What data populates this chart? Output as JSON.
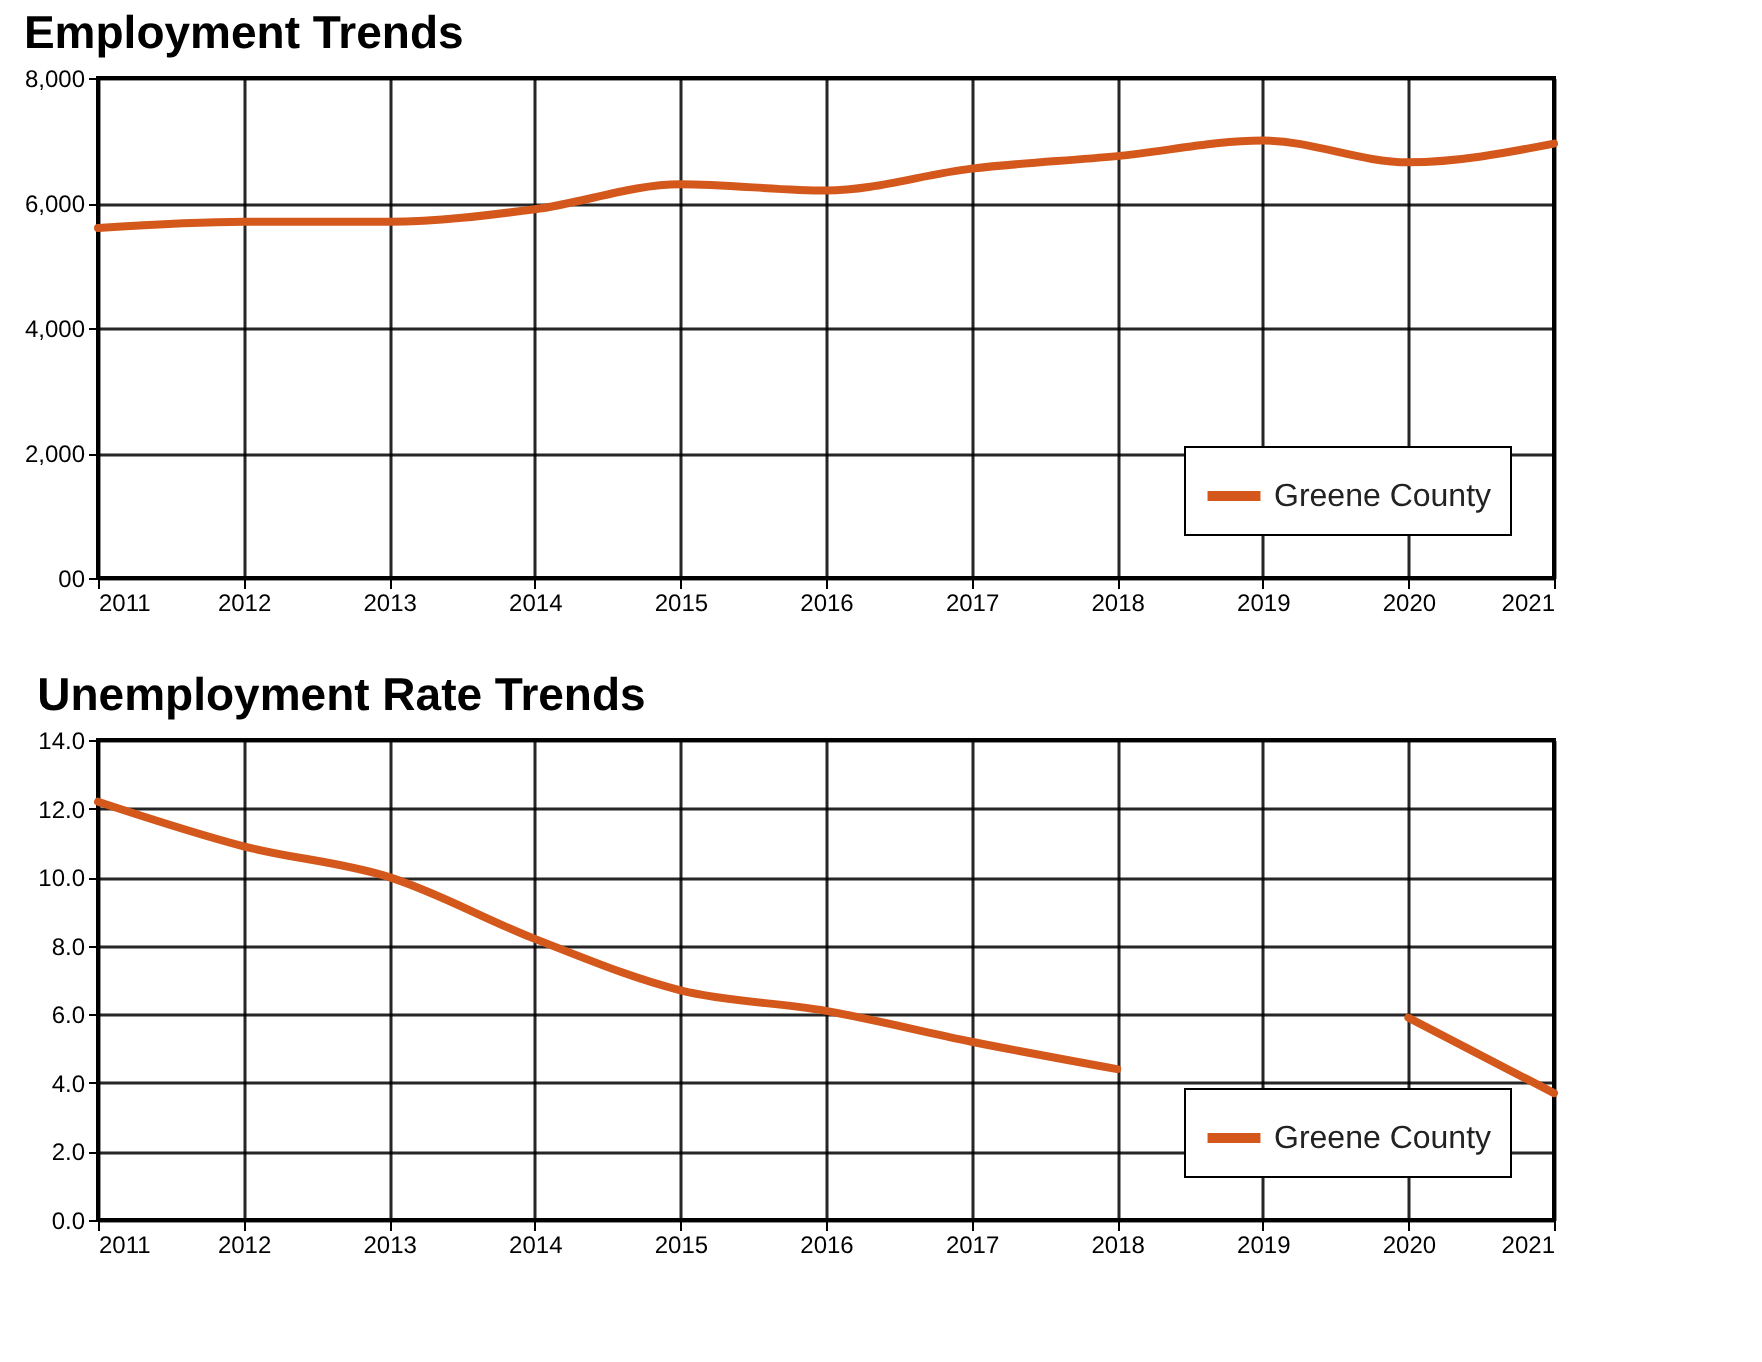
{
  "chart_data": [
    {
      "type": "line",
      "title": "Employment Trends",
      "x": [
        2011,
        2012,
        2013,
        2014,
        2015,
        2016,
        2017,
        2018,
        2019,
        2020,
        2021
      ],
      "series": [
        {
          "name": "Greene County",
          "color": "#d4581c",
          "values": [
            5600,
            5700,
            5700,
            5900,
            6300,
            6200,
            6550,
            6750,
            7000,
            6650,
            6950
          ]
        }
      ],
      "xlim": [
        2011,
        2021
      ],
      "xticks": [
        2011,
        2012,
        2013,
        2014,
        2015,
        2016,
        2017,
        2018,
        2019,
        2020,
        2021
      ],
      "ylim": [
        0,
        8000
      ],
      "yticks": [
        {
          "value": 0,
          "label": "00"
        },
        {
          "value": 2000,
          "label": "2,000"
        },
        {
          "value": 4000,
          "label": "4,000"
        },
        {
          "value": 6000,
          "label": "6,000"
        },
        {
          "value": 8000,
          "label": "8,000"
        }
      ],
      "grid": true,
      "legend": "bottom right",
      "marker": "none",
      "line_style": "solid"
    },
    {
      "type": "line",
      "title": "Unemployment Rate Trends",
      "x": [
        2011,
        2012,
        2013,
        2014,
        2015,
        2016,
        2017,
        2018,
        2019,
        2020,
        2021
      ],
      "series": [
        {
          "name": "Greene County",
          "color": "#d4581c",
          "values": [
            12.2,
            10.9,
            10.0,
            8.2,
            6.7,
            6.1,
            5.2,
            4.4,
            null,
            5.9,
            3.7
          ]
        }
      ],
      "xlim": [
        2011,
        2021
      ],
      "xticks": [
        2011,
        2012,
        2013,
        2014,
        2015,
        2016,
        2017,
        2018,
        2019,
        2020,
        2021
      ],
      "ylim": [
        0,
        14
      ],
      "yticks": [
        {
          "value": 0,
          "label": "0.0"
        },
        {
          "value": 2,
          "label": "2.0"
        },
        {
          "value": 4,
          "label": "4.0"
        },
        {
          "value": 6,
          "label": "6.0"
        },
        {
          "value": 8,
          "label": "8.0"
        },
        {
          "value": 10,
          "label": "10.0"
        },
        {
          "value": 12,
          "label": "12.0"
        },
        {
          "value": 14,
          "label": "14.0"
        }
      ],
      "grid": true,
      "legend": "bottom right",
      "marker": "none",
      "line_style": "solid"
    }
  ]
}
